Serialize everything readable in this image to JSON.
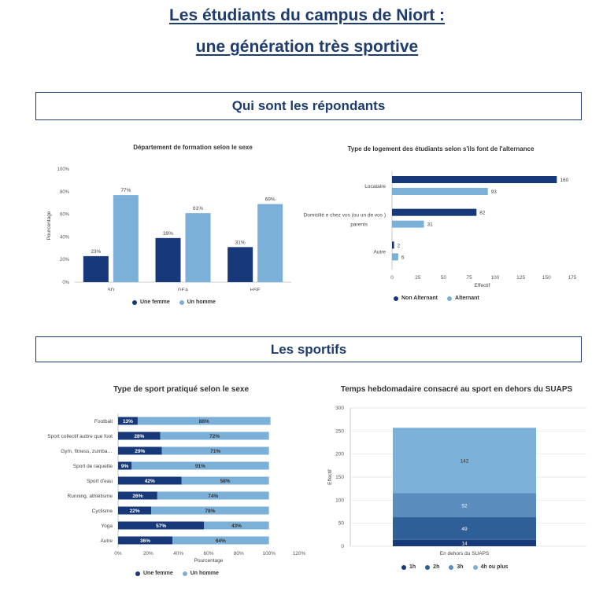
{
  "colors": {
    "title": "#1f3c6e",
    "dark": "#17397a",
    "light": "#7bb0d8",
    "c1h": "#17397a",
    "c2h": "#2f5f97",
    "c3h": "#5a8cbe",
    "c4h": "#7bb0d8"
  },
  "page": {
    "title_line1": "Les étudiants du campus de Niort :",
    "title_line2": "une génération très sportive",
    "section1": "Qui sont les répondants",
    "section2": "Les sportifs"
  },
  "chart_data": [
    {
      "id": "dept",
      "type": "bar",
      "title": "Département de formation selon le sexe",
      "ylabel": "Pourcentage",
      "ylim": [
        0,
        100
      ],
      "yticks": [
        "0%",
        "20%",
        "40%",
        "60%",
        "80%",
        "100%"
      ],
      "categories": [
        "SD",
        "GEA",
        "HSE"
      ],
      "series": [
        {
          "name": "Une femme",
          "values": [
            23,
            39,
            31
          ],
          "labels": [
            "23%",
            "39%",
            "31%"
          ]
        },
        {
          "name": "Un homme",
          "values": [
            77,
            61,
            69
          ],
          "labels": [
            "77%",
            "61%",
            "69%"
          ]
        }
      ],
      "legend": "bottom",
      "grid": false
    },
    {
      "id": "logement",
      "type": "bar",
      "orientation": "horizontal",
      "title": "Type de logement  des étudiants selon s'ils font de l'alternance",
      "xlabel": "Effectif",
      "xlim": [
        0,
        175
      ],
      "xticks": [
        "0",
        "25",
        "50",
        "75",
        "100",
        "125",
        "150",
        "175"
      ],
      "categories": [
        "Locataire",
        "Domicilié e chez vos (ou un de vos )\nparents",
        "Autre"
      ],
      "series": [
        {
          "name": "Non Alternant",
          "values": [
            160,
            82,
            2
          ],
          "labels": [
            "160",
            "82",
            "2"
          ]
        },
        {
          "name": "Alternant",
          "values": [
            93,
            31,
            6
          ],
          "labels": [
            "93",
            "31",
            "6"
          ]
        }
      ],
      "legend": "bottom",
      "grid": false
    },
    {
      "id": "sport",
      "type": "bar",
      "orientation": "horizontal",
      "stacked": true,
      "title": "Type de sport pratiqué selon le sexe",
      "xlabel": "Pourcentage",
      "xlim": [
        0,
        120
      ],
      "xticks": [
        "0%",
        "20%",
        "40%",
        "60%",
        "80%",
        "100%",
        "120%"
      ],
      "categories": [
        "Football",
        "Sport collectif auttre que foot",
        "Gym, fitness, zumba…",
        "Sport de raquette",
        "Sport d'eau",
        "Running, athlétisme",
        "Cyclisme",
        "Yoga",
        "Autre"
      ],
      "series": [
        {
          "name": "Une femme",
          "values": [
            13,
            28,
            29,
            9,
            42,
            26,
            22,
            57,
            36
          ],
          "labels": [
            "13%",
            "28%",
            "29%",
            "9%",
            "42%",
            "26%",
            "22%",
            "57%",
            "36%"
          ]
        },
        {
          "name": "Un homme",
          "values": [
            88,
            72,
            71,
            91,
            58,
            74,
            78,
            43,
            64
          ],
          "labels": [
            "88%",
            "72%",
            "71%",
            "91%",
            "58%",
            "74%",
            "78%",
            "43%",
            "64%"
          ]
        }
      ],
      "legend": "bottom",
      "grid": false
    },
    {
      "id": "temps",
      "type": "bar",
      "stacked": true,
      "title": "Temps hebdomadaire consacré au sport en dehors du SUAPS",
      "ylabel": "Effectif",
      "ylim": [
        0,
        300
      ],
      "yticks": [
        "0",
        "50",
        "100",
        "150",
        "200",
        "250",
        "300"
      ],
      "categories": [
        "En dehors du SUAPS"
      ],
      "series": [
        {
          "name": "1h",
          "values": [
            14
          ],
          "labels": [
            "14"
          ]
        },
        {
          "name": "2h",
          "values": [
            49
          ],
          "labels": [
            "49"
          ]
        },
        {
          "name": "3h",
          "values": [
            52
          ],
          "labels": [
            "52"
          ]
        },
        {
          "name": "4h ou plus",
          "values": [
            142
          ],
          "labels": [
            "142"
          ]
        }
      ],
      "legend": "bottom",
      "grid": true
    }
  ]
}
